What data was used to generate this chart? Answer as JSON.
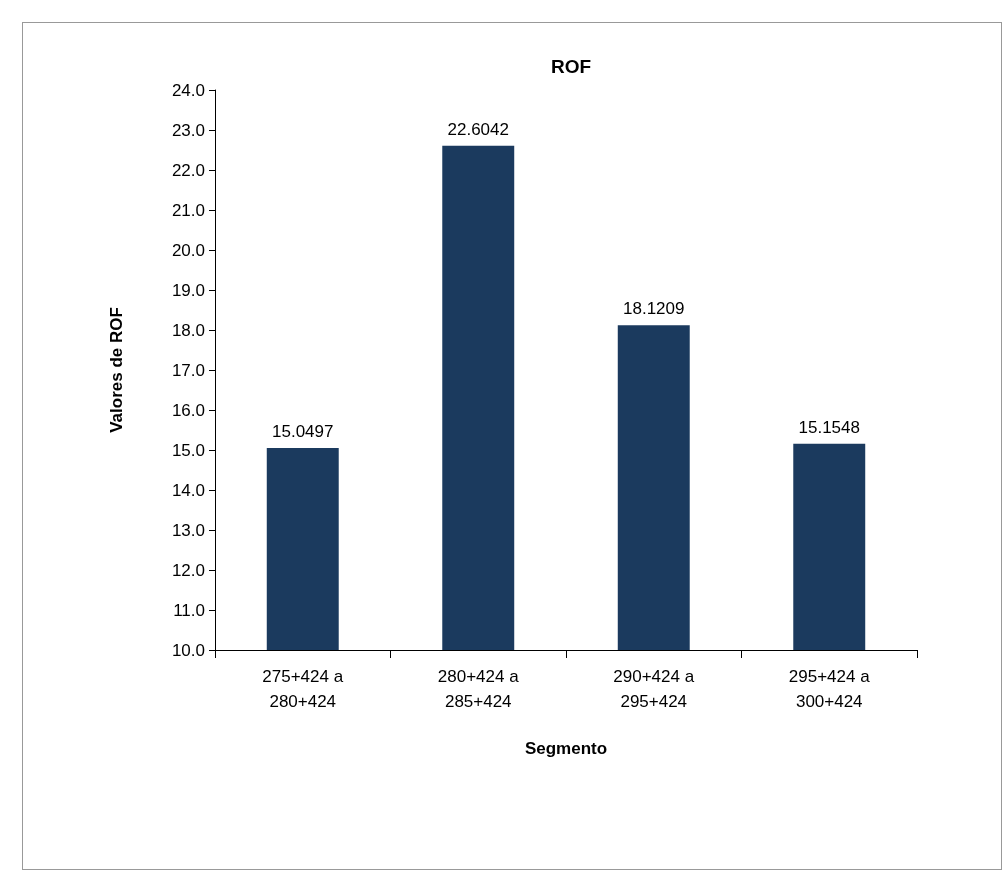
{
  "chart_data": {
    "type": "bar",
    "title": "ROF",
    "xlabel": "Segmento",
    "ylabel": "Valores de ROF",
    "categories": [
      "275+424 a\n280+424",
      "280+424 a\n285+424",
      "290+424 a\n295+424",
      "295+424 a\n300+424"
    ],
    "values": [
      15.0497,
      22.6042,
      18.1209,
      15.1548
    ],
    "color": "#1b3a5e",
    "ylim": [
      10,
      24
    ],
    "yticks": [
      {
        "value": 10,
        "label": "10.0"
      },
      {
        "value": 11,
        "label": "11.0"
      },
      {
        "value": 12,
        "label": "12.0"
      },
      {
        "value": 13,
        "label": "13.0"
      },
      {
        "value": 14,
        "label": "14.0"
      },
      {
        "value": 15,
        "label": "15.0"
      },
      {
        "value": 16,
        "label": "16.0"
      },
      {
        "value": 17,
        "label": "17.0"
      },
      {
        "value": 18,
        "label": "18.0"
      },
      {
        "value": 19,
        "label": "19.0"
      },
      {
        "value": 20,
        "label": "20.0"
      },
      {
        "value": 21,
        "label": "21.0"
      },
      {
        "value": 22,
        "label": "22.0"
      },
      {
        "value": 23,
        "label": "23.0"
      },
      {
        "value": 24,
        "label": "24.0"
      }
    ],
    "data_labels": true
  }
}
